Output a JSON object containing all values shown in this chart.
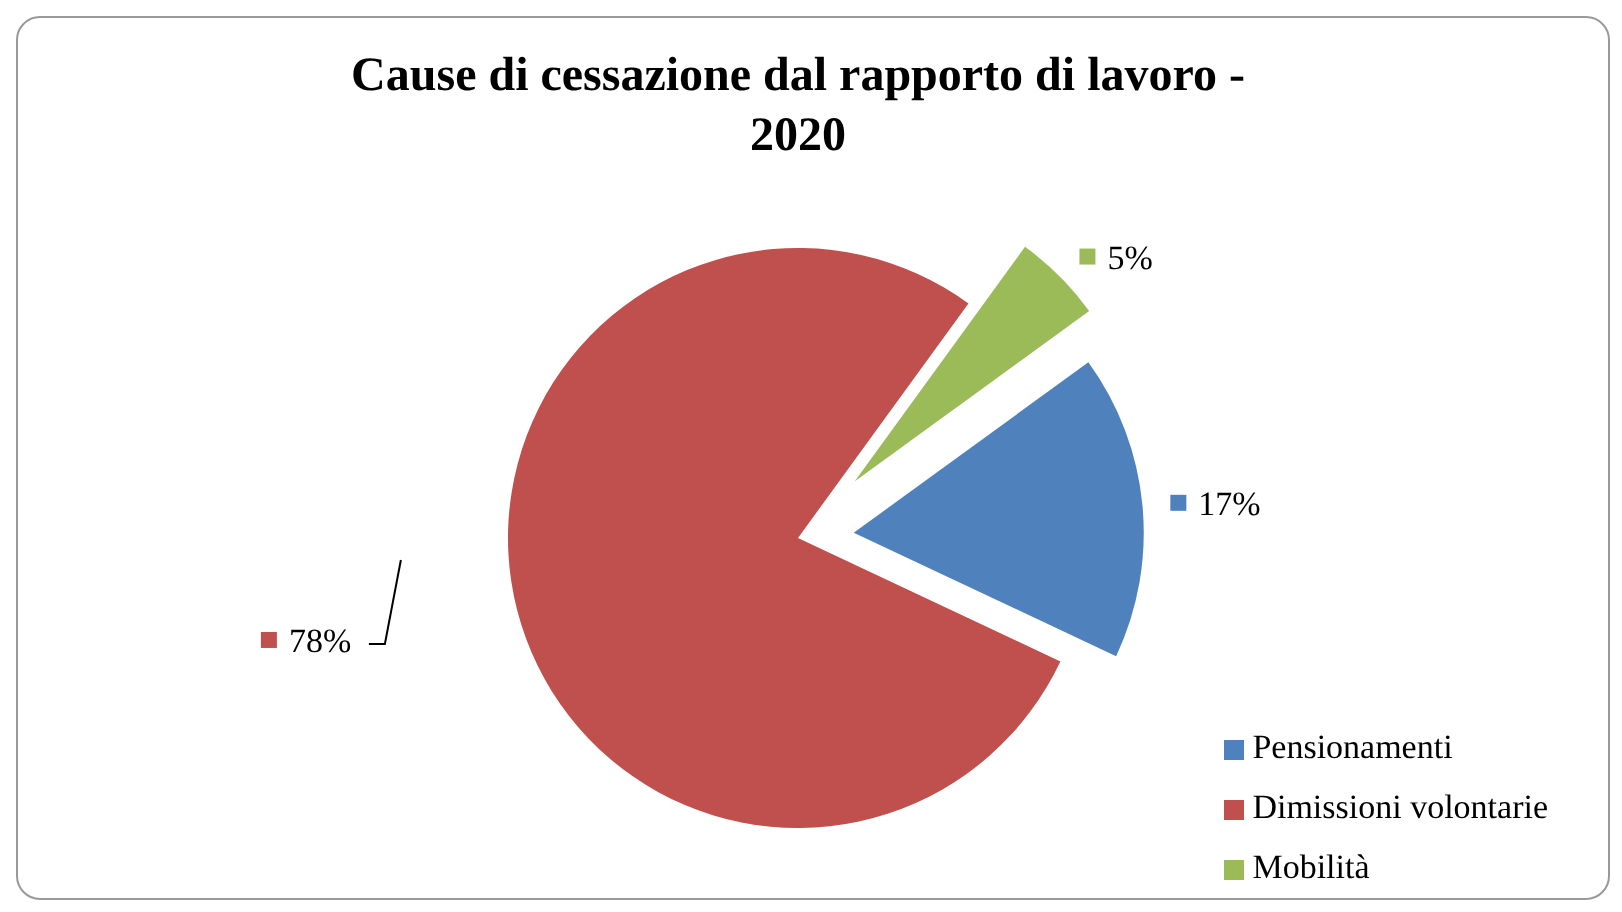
{
  "chart_data": {
    "type": "pie",
    "title": "Cause di cessazione dal rapporto di lavoro - 2020",
    "categories": [
      "Pensionamenti",
      "Dimissioni volontarie",
      "Mobilità"
    ],
    "values": [
      17,
      78,
      5
    ],
    "colors": [
      "#4f81bd",
      "#c0504d",
      "#9bbb59"
    ],
    "value_labels": [
      "17%",
      "78%",
      "5%"
    ],
    "legend": "bottom right"
  }
}
